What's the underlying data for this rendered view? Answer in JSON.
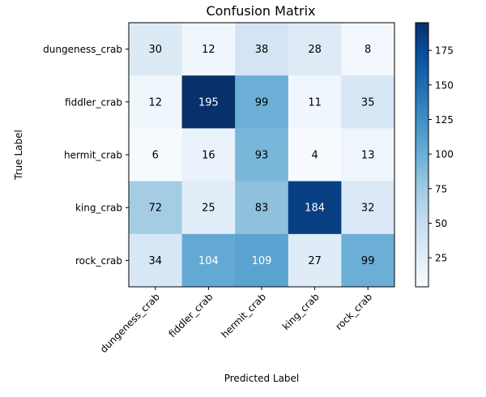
{
  "chart_data": {
    "type": "heatmap",
    "title": "Confusion Matrix",
    "xlabel": "Predicted Label",
    "ylabel": "True Label",
    "x_categories": [
      "dungeness_crab",
      "fiddler_crab",
      "hermit_crab",
      "king_crab",
      "rock_crab"
    ],
    "y_categories": [
      "dungeness_crab",
      "fiddler_crab",
      "hermit_crab",
      "king_crab",
      "rock_crab"
    ],
    "values": [
      [
        30,
        12,
        38,
        28,
        8
      ],
      [
        12,
        195,
        99,
        11,
        35
      ],
      [
        6,
        16,
        93,
        4,
        13
      ],
      [
        72,
        25,
        83,
        184,
        32
      ],
      [
        34,
        104,
        109,
        27,
        99
      ]
    ],
    "colormap": "Blues",
    "color_range": [
      4,
      195
    ],
    "colorbar_ticks": [
      25,
      50,
      75,
      100,
      125,
      150,
      175
    ],
    "colorbar_tick_labels": [
      "25",
      "50",
      "75",
      "100",
      "125",
      "150",
      "175"
    ],
    "grid": false
  }
}
